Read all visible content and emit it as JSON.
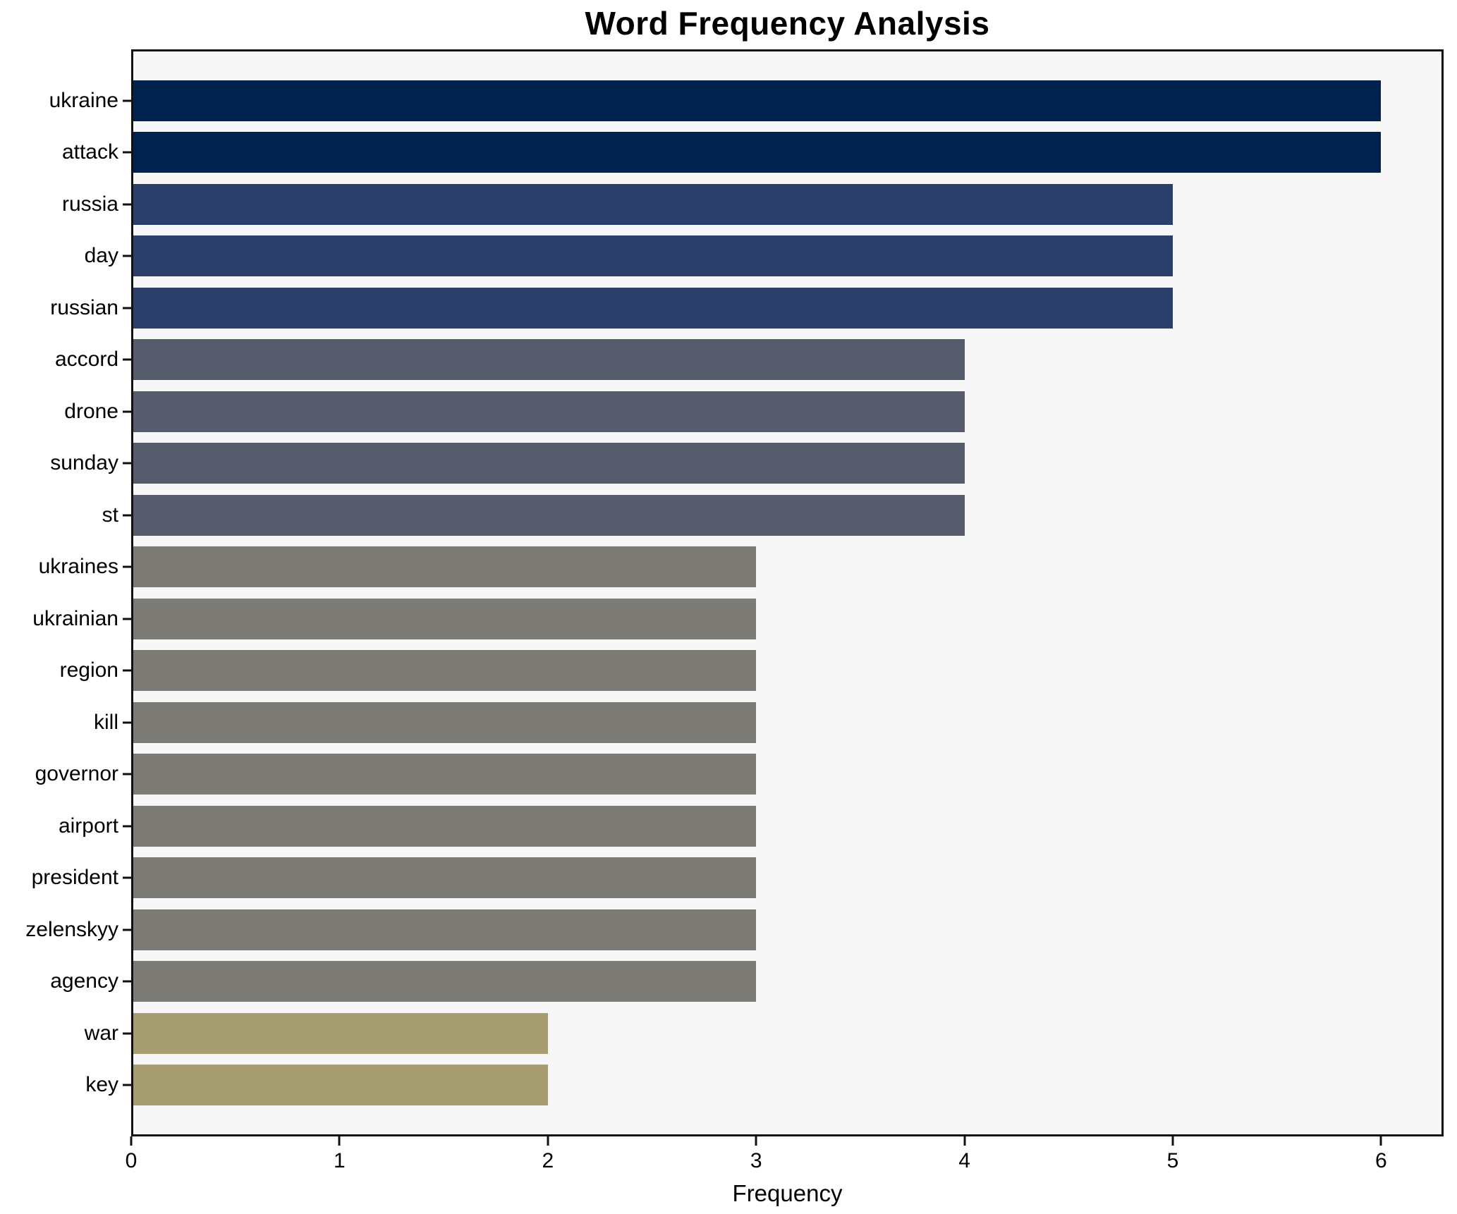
{
  "title": "Word Frequency Analysis",
  "chart_data": {
    "type": "bar",
    "orientation": "horizontal",
    "title": "Word Frequency Analysis",
    "xlabel": "Frequency",
    "ylabel": "",
    "categories": [
      "ukraine",
      "attack",
      "russia",
      "day",
      "russian",
      "accord",
      "drone",
      "sunday",
      "st",
      "ukraines",
      "ukrainian",
      "region",
      "kill",
      "governor",
      "airport",
      "president",
      "zelenskyy",
      "agency",
      "war",
      "key"
    ],
    "values": [
      6,
      6,
      5,
      5,
      5,
      4,
      4,
      4,
      4,
      3,
      3,
      3,
      3,
      3,
      3,
      3,
      3,
      3,
      2,
      2
    ],
    "xlim": [
      0,
      6.3
    ],
    "xticks": [
      0,
      1,
      2,
      3,
      4,
      5,
      6
    ],
    "grid": false,
    "legend": "none",
    "colors": {
      "value_color_map": {
        "6": "#00224e",
        "5": "#2c3e6a",
        "4": "#565c6c",
        "3": "#7c7b75",
        "2": "#a69d73"
      },
      "plot_background": "#f7f7f8",
      "figure_background": "#ffffff",
      "spine": "#111111",
      "text": "#000000"
    }
  }
}
